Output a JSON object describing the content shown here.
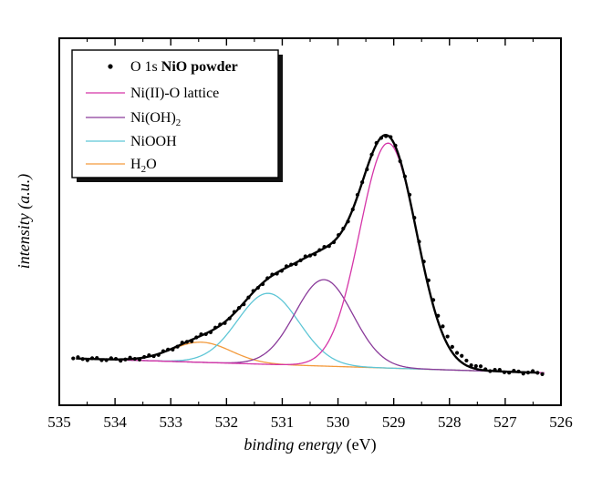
{
  "chart_data": {
    "type": "line",
    "xlabel": {
      "italic": "binding energy",
      "rest": " (eV)"
    },
    "ylabel": "intensity (a.u.)",
    "xlim": [
      535,
      526
    ],
    "x_reversed": true,
    "x_ticks": [
      "535",
      "534",
      "533",
      "532",
      "531",
      "530",
      "529",
      "528",
      "527",
      "526"
    ],
    "y_ticks_labeled": false,
    "legend": {
      "position": "top-left",
      "entries": [
        {
          "key": "points",
          "prefix": "O 1s ",
          "bold": "NiO powder",
          "marker": "dot",
          "color": "#000000"
        },
        {
          "key": "lattice",
          "label": "Ni(II)-O lattice",
          "color": "#d535a8"
        },
        {
          "key": "hydroxide",
          "label": "Ni(OH)",
          "sub": "2",
          "color": "#8a3a9a"
        },
        {
          "key": "niooh",
          "label": "NiOOH",
          "color": "#5ec6d6"
        },
        {
          "key": "water",
          "label": "H",
          "sub": "2",
          "after": "O",
          "color": "#f39a3c"
        }
      ]
    },
    "components": [
      {
        "key": "lattice",
        "center_eV": 529.1,
        "height": 0.95,
        "fwhm_eV": 1.2
      },
      {
        "key": "hydroxide",
        "center_eV": 530.25,
        "height": 0.365,
        "fwhm_eV": 1.22
      },
      {
        "key": "niooh",
        "center_eV": 531.25,
        "height": 0.3,
        "fwhm_eV": 1.3
      },
      {
        "key": "water",
        "center_eV": 532.45,
        "height": 0.085,
        "fwhm_eV": 1.25
      }
    ],
    "background": {
      "start_eV": 535,
      "end_eV": 526,
      "start_level": 0.065,
      "end_level": 0.0
    },
    "envelope_color": "#000000",
    "point_step_eV": 0.085
  }
}
